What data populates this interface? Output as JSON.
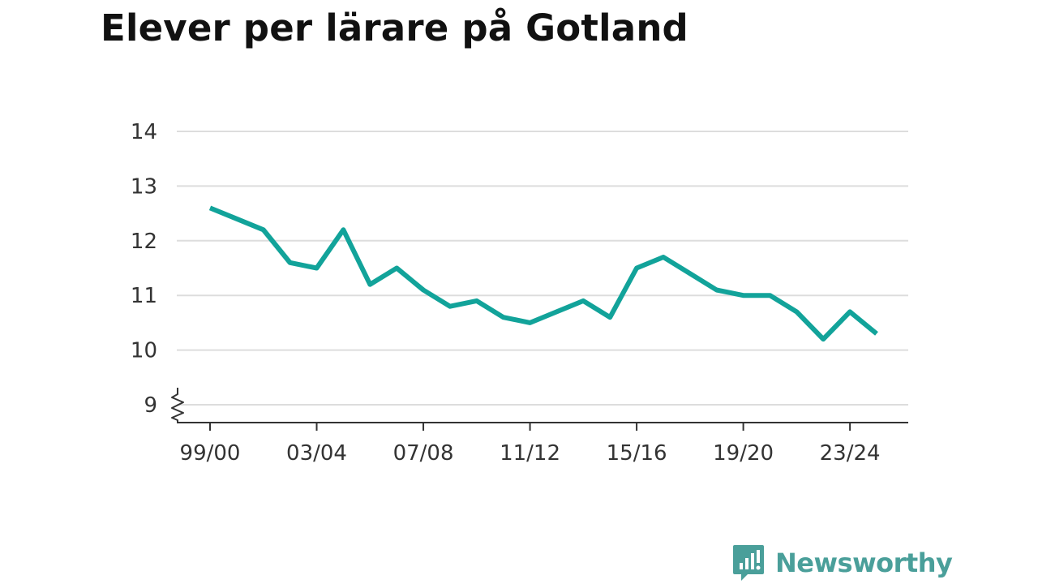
{
  "title": "Elever per lärare på Gotland",
  "brand": {
    "name": "Newsworthy"
  },
  "colors": {
    "line": "#12a39a",
    "grid": "#dddddd",
    "axis": "#333333",
    "brand": "#4a9f9a"
  },
  "chart_data": {
    "type": "line",
    "title": "Elever per lärare på Gotland",
    "xlabel": "",
    "ylabel": "",
    "x": [
      "99/00",
      "00/01",
      "01/02",
      "02/03",
      "03/04",
      "04/05",
      "05/06",
      "06/07",
      "07/08",
      "08/09",
      "09/10",
      "10/11",
      "11/12",
      "12/13",
      "13/14",
      "14/15",
      "15/16",
      "16/17",
      "17/18",
      "18/19",
      "19/20",
      "20/21",
      "21/22",
      "22/23",
      "23/24",
      "24/25"
    ],
    "x_tick_labels": [
      "99/00",
      "03/04",
      "07/08",
      "11/12",
      "15/16",
      "19/20",
      "23/24"
    ],
    "y_ticks": [
      9,
      10,
      11,
      12,
      13,
      14
    ],
    "ylim": [
      9,
      14
    ],
    "y_axis_break": true,
    "grid": true,
    "series": [
      {
        "values": [
          12.6,
          12.4,
          12.2,
          11.6,
          11.5,
          12.2,
          11.2,
          11.5,
          11.1,
          10.8,
          10.9,
          10.6,
          10.5,
          10.7,
          10.9,
          10.6,
          11.5,
          11.7,
          11.4,
          11.1,
          11.0,
          11.0,
          10.7,
          10.2,
          10.7,
          10.3
        ]
      }
    ]
  }
}
